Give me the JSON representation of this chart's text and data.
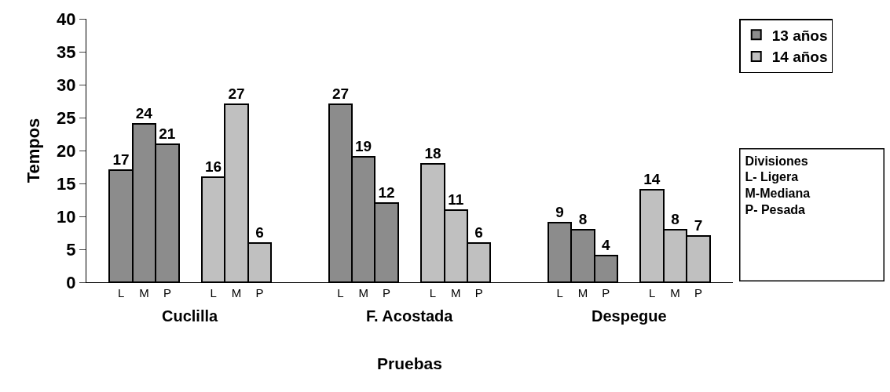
{
  "chart_data": {
    "type": "bar",
    "categories": [
      "L",
      "M",
      "P",
      "L",
      "M",
      "P",
      "L",
      "M",
      "P",
      "L",
      "M",
      "P",
      "L",
      "M",
      "P",
      "L",
      "M",
      "P"
    ],
    "series": [
      {
        "name": "13 años",
        "color": "#8c8c8c",
        "values": [
          17,
          24,
          21,
          null,
          null,
          null,
          27,
          19,
          12,
          null,
          null,
          null,
          9,
          8,
          4,
          null,
          null,
          null
        ]
      },
      {
        "name": "14 años",
        "color": "#c0c0c0",
        "values": [
          null,
          null,
          null,
          16,
          27,
          6,
          null,
          null,
          null,
          18,
          11,
          6,
          null,
          null,
          null,
          14,
          8,
          7
        ]
      }
    ],
    "xlabel": "Pruebas",
    "ylabel": "Tempos",
    "ylim": [
      0,
      40
    ],
    "yticks": [
      0,
      5,
      10,
      15,
      20,
      25,
      30,
      35,
      40
    ],
    "annotations": [
      "Cuclilla",
      "F. Acostada",
      "Despegue",
      "Divisiones\nL- Ligera\nM-Mediana\nP- Pesada"
    ],
    "data_labels": true,
    "legend": "top right"
  }
}
